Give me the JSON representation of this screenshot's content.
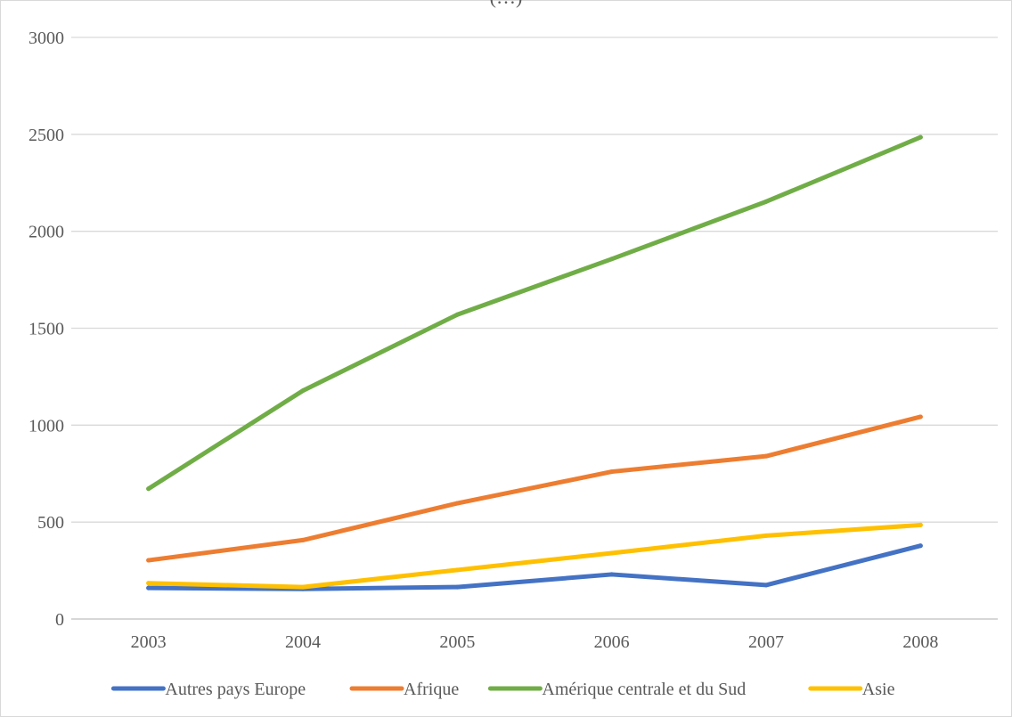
{
  "chart_data": {
    "type": "line",
    "title": "(…)",
    "categories": [
      "2003",
      "2004",
      "2005",
      "2006",
      "2007",
      "2008"
    ],
    "ylim": [
      0,
      3000
    ],
    "yticks": [
      "0",
      "500",
      "1000",
      "1500",
      "2000",
      "2500",
      "3000"
    ],
    "grid": true,
    "legend_position": "bottom",
    "series": [
      {
        "name": "Autres pays Europe",
        "color": "#4472c4",
        "values": [
          160,
          155,
          165,
          230,
          175,
          378
        ]
      },
      {
        "name": "Afrique",
        "color": "#ed7d31",
        "values": [
          303,
          407,
          597,
          760,
          840,
          1043
        ]
      },
      {
        "name": "Amérique centrale et du Sud",
        "color": "#70ad47",
        "values": [
          672,
          1178,
          1570,
          1857,
          2153,
          2485
        ]
      },
      {
        "name": "Asie",
        "color": "#ffc000",
        "values": [
          185,
          165,
          253,
          340,
          430,
          485
        ]
      }
    ]
  }
}
